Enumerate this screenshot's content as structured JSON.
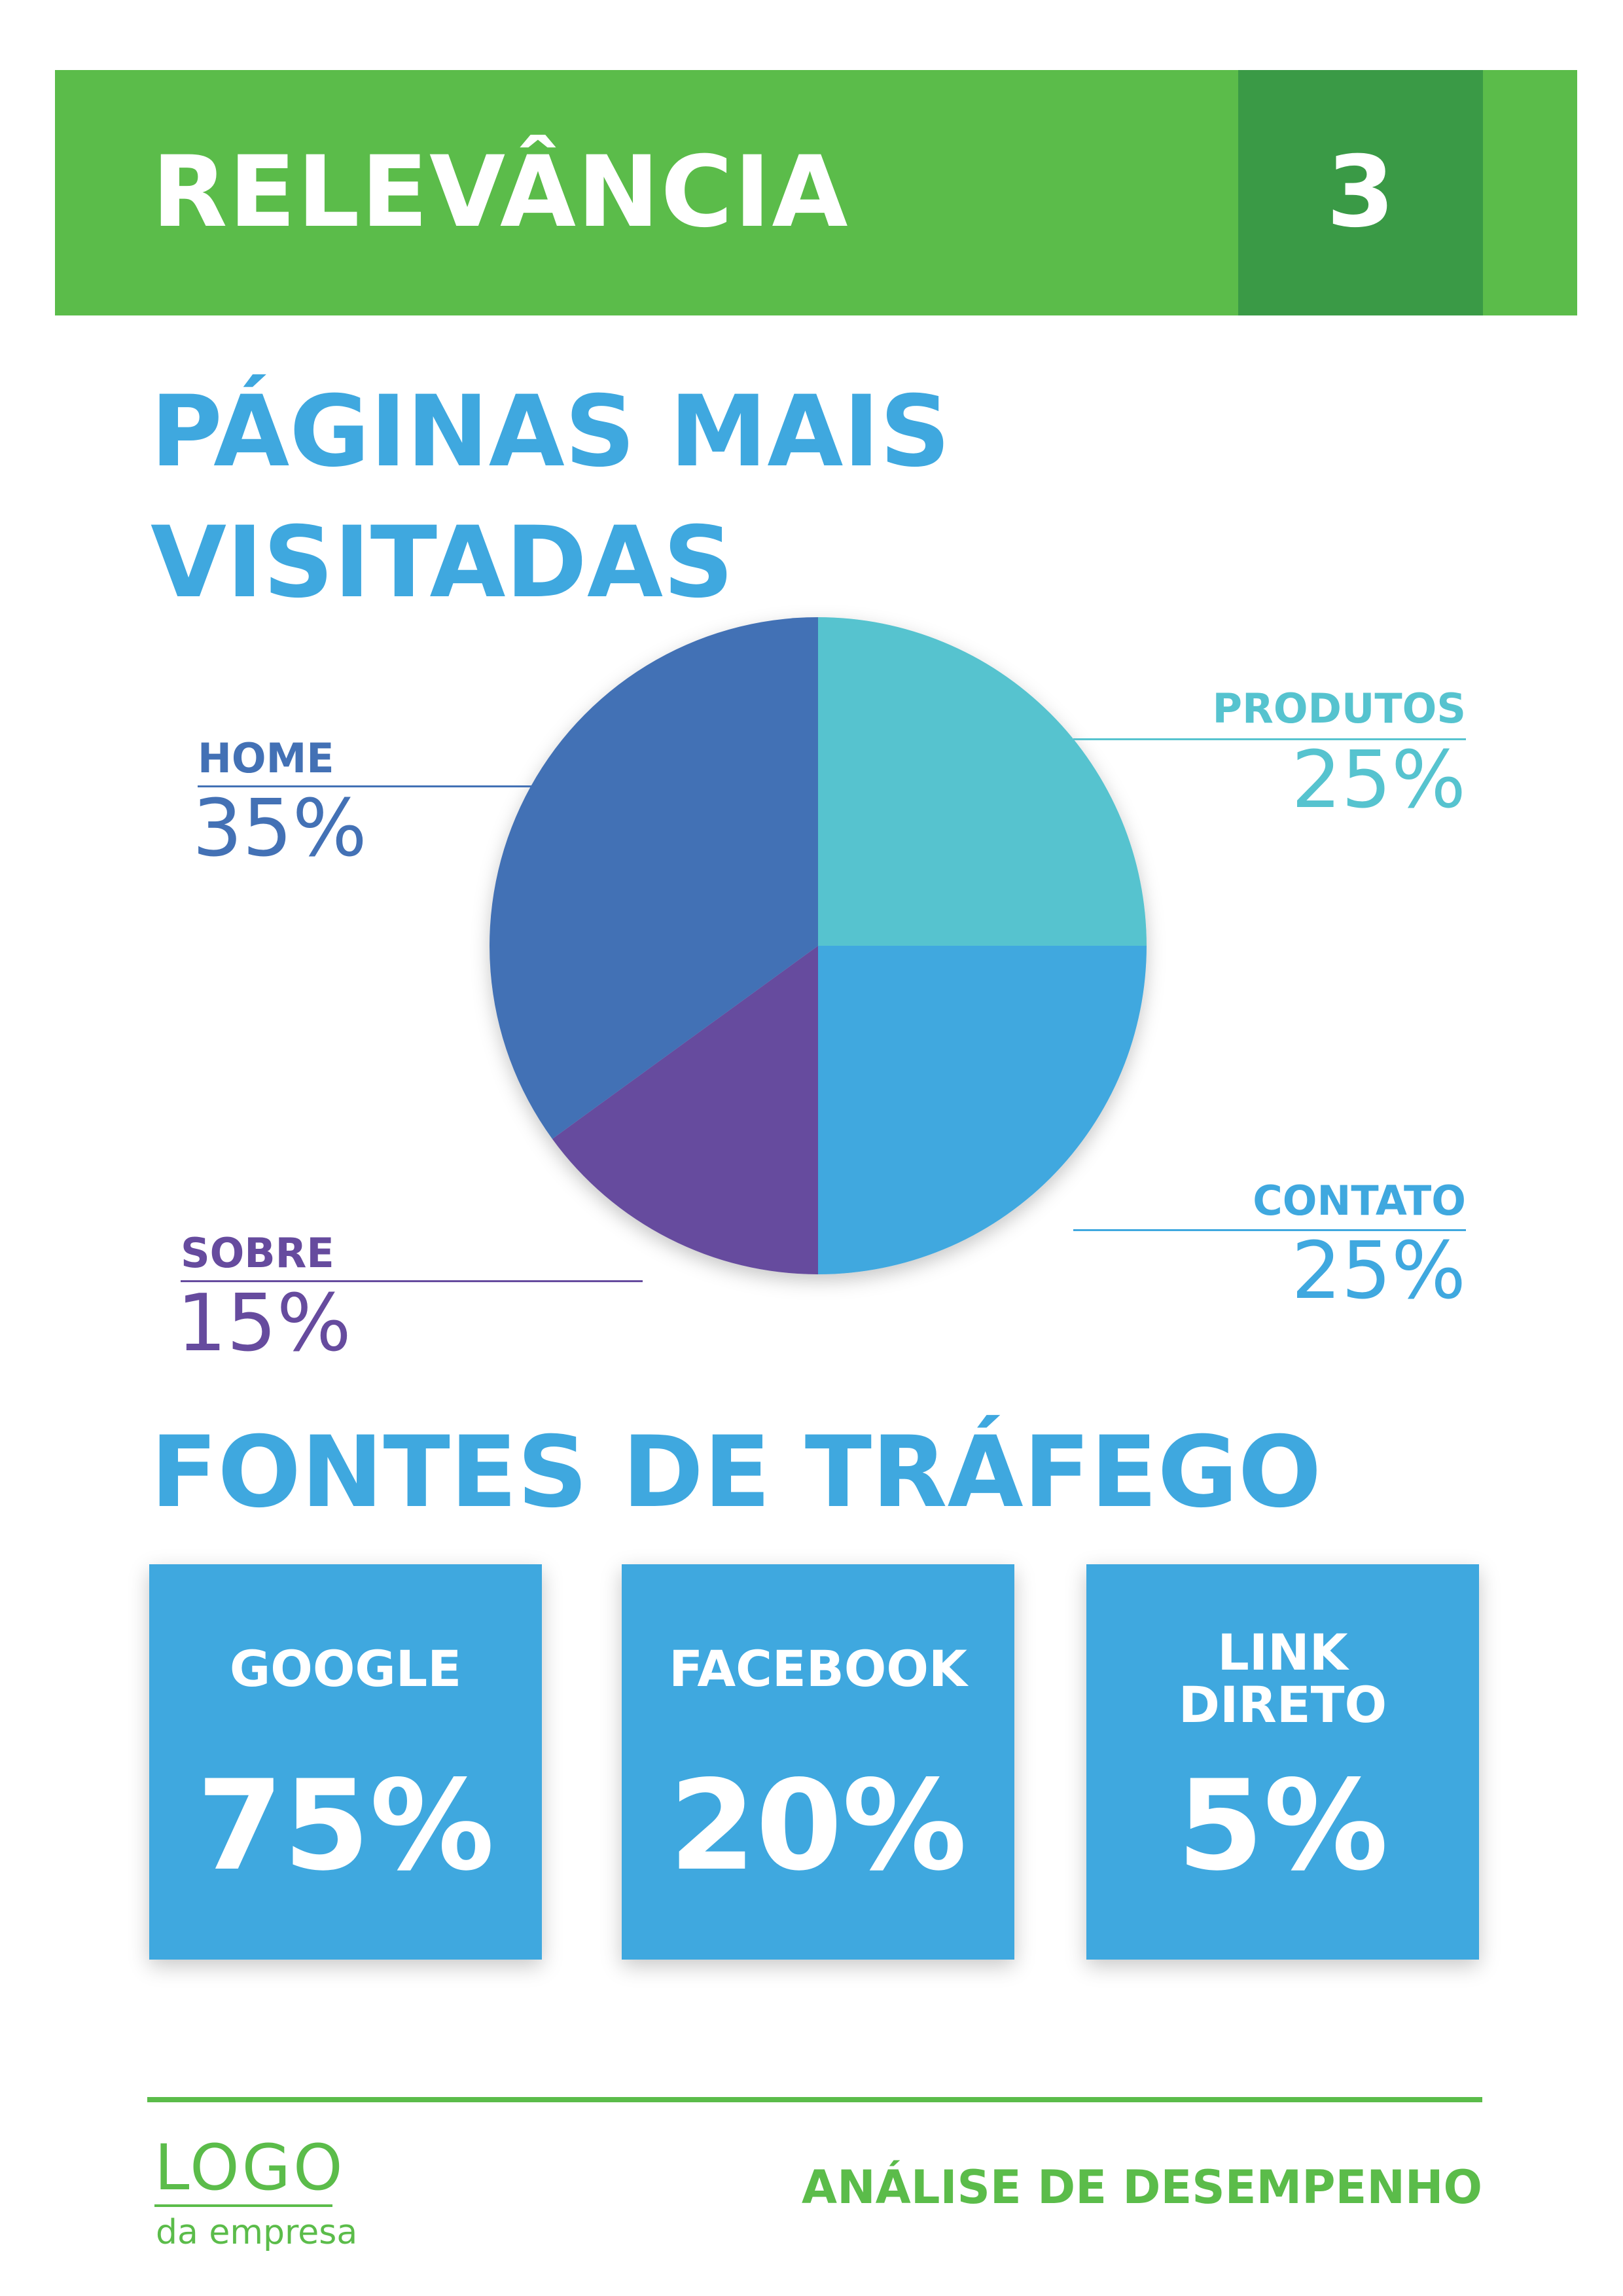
{
  "header": {
    "title": "RELEVÂNCIA",
    "page_number": "3"
  },
  "pages_section": {
    "title_line1": "PÁGINAS MAIS",
    "title_line2": "VISITADAS"
  },
  "chart_data": {
    "type": "pie",
    "title": "PÁGINAS MAIS VISITADAS",
    "slices": [
      {
        "label": "PRODUTOS",
        "value": 25,
        "value_label": "25%",
        "color": "#56c3cf"
      },
      {
        "label": "CONTATO",
        "value": 25,
        "value_label": "25%",
        "color": "#3fa8df"
      },
      {
        "label": "SOBRE",
        "value": 15,
        "value_label": "15%",
        "color": "#664b9e"
      },
      {
        "label": "HOME",
        "value": 35,
        "value_label": "35%",
        "color": "#4371b5"
      }
    ],
    "legend": "labels beside slices"
  },
  "traffic_section": {
    "title": "FONTES DE TRÁFEGO",
    "cards": [
      {
        "label_line1": "GOOGLE",
        "label_line2": "",
        "value": "75%"
      },
      {
        "label_line1": "FACEBOOK",
        "label_line2": "",
        "value": "20%"
      },
      {
        "label_line1": "LINK",
        "label_line2": "DIRETO",
        "value": "5%"
      }
    ]
  },
  "footer": {
    "logo_text": "LOGO",
    "logo_subtext": "da empresa",
    "tagline": "ANÁLISE DE DESEMPENHO"
  },
  "colors": {
    "green": "#5bbc4a",
    "dark_green": "#3a9a46",
    "blue": "#3fa8df",
    "teal": "#56c3cf",
    "navy": "#4371b5",
    "purple": "#664b9e"
  }
}
